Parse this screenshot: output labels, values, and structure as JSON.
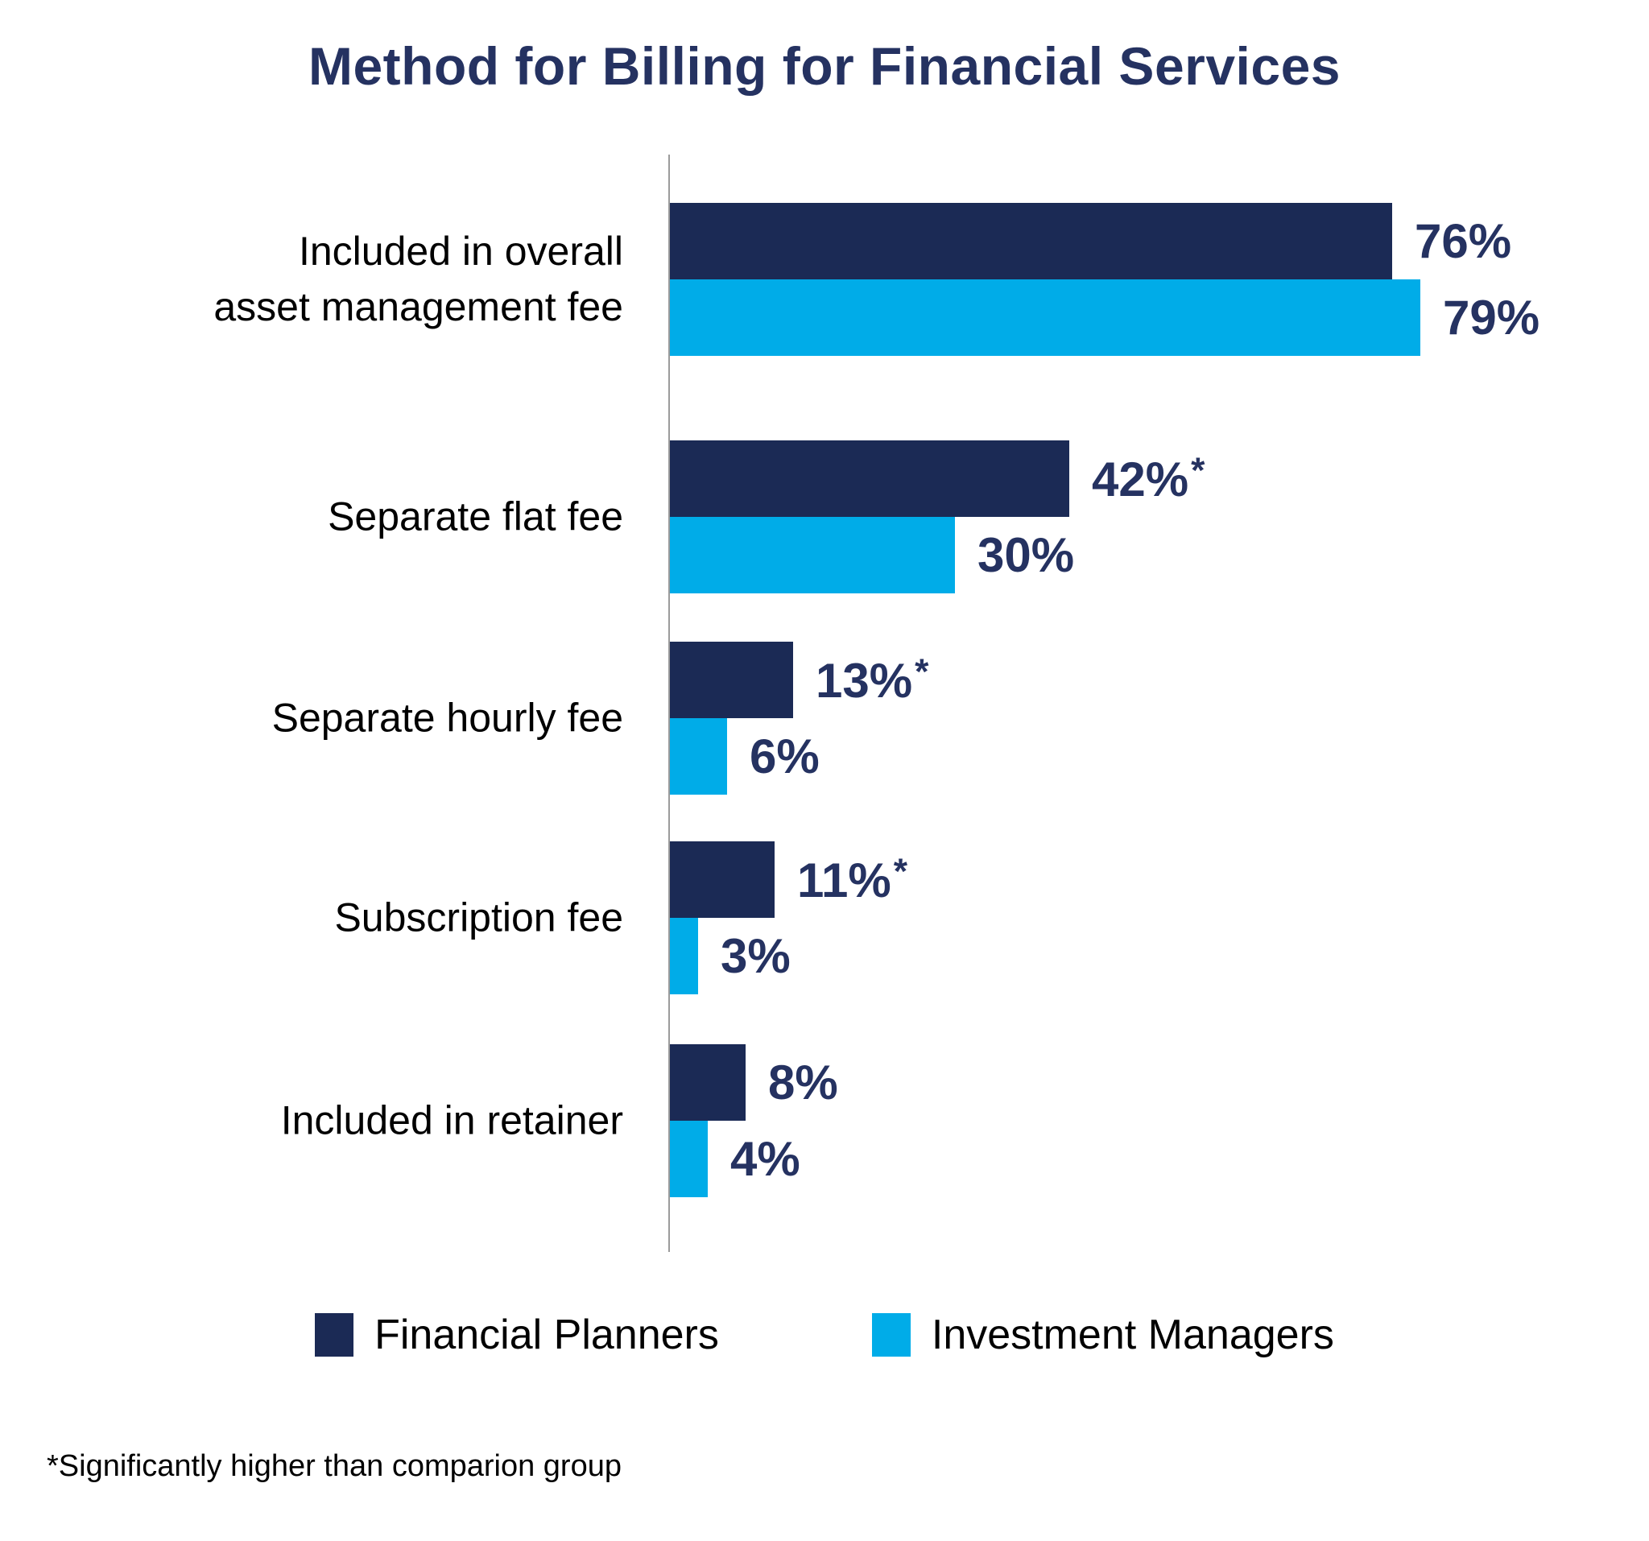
{
  "title": "Method for Billing for Financial Services",
  "footnote": "*Significantly higher than comparion group",
  "legend": [
    {
      "label": "Financial Planners",
      "color": "#1B2A55"
    },
    {
      "label": "Investment Managers",
      "color": "#00ACE8"
    }
  ],
  "chart_data": {
    "type": "bar",
    "orientation": "horizontal",
    "title": "Method for Billing for Financial Services",
    "xlabel": "",
    "ylabel": "",
    "xlim": [
      0,
      100
    ],
    "grid": false,
    "legend_position": "bottom",
    "categories": [
      "Included in overall\nasset management fee",
      "Separate flat fee",
      "Separate hourly fee",
      "Subscription fee",
      "Included in retainer"
    ],
    "series": [
      {
        "name": "Financial Planners",
        "color": "#1B2A55",
        "values": [
          76,
          42,
          13,
          11,
          8
        ],
        "labels": [
          "76%",
          "42%*",
          "13%*",
          "11%*",
          "8%"
        ]
      },
      {
        "name": "Investment Managers",
        "color": "#00ACE8",
        "values": [
          79,
          30,
          6,
          3,
          4
        ],
        "labels": [
          "79%",
          "30%",
          "6%",
          "3%",
          "4%"
        ]
      }
    ],
    "annotation": "*Significantly higher than comparion group"
  },
  "layout_note": ""
}
